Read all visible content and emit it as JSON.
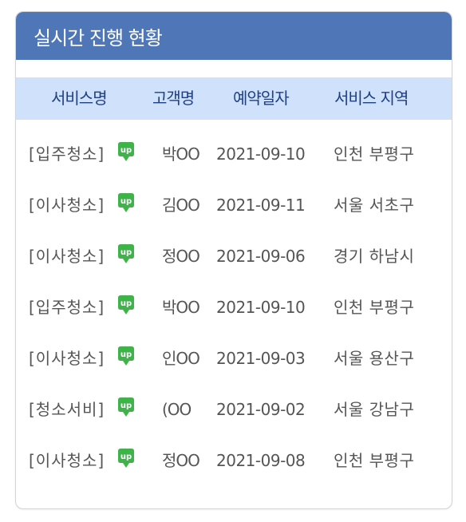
{
  "panel": {
    "title": "실시간 진행 현황"
  },
  "columns": [
    "서비스명",
    "고객명",
    "예약일자",
    "서비스 지역"
  ],
  "badge_label": "up",
  "rows": [
    {
      "service": "[입주청소]",
      "customer": "박OO",
      "date": "2021-09-10",
      "area": "인천 부평구"
    },
    {
      "service": "[이사청소]",
      "customer": "김OO",
      "date": "2021-09-11",
      "area": "서울 서초구"
    },
    {
      "service": "[이사청소]",
      "customer": "정OO",
      "date": "2021-09-06",
      "area": "경기 하남시"
    },
    {
      "service": "[입주청소]",
      "customer": "박OO",
      "date": "2021-09-10",
      "area": "인천 부평구"
    },
    {
      "service": "[이사청소]",
      "customer": "인OO",
      "date": "2021-09-03",
      "area": "서울 용산구"
    },
    {
      "service": "[청소서비]",
      "customer": "(OO",
      "date": "2021-09-02",
      "area": "서울 강남구"
    },
    {
      "service": "[이사청소]",
      "customer": "정OO",
      "date": "2021-09-08",
      "area": "인천 부평구"
    }
  ],
  "colors": {
    "header_bg": "#4f77b8",
    "column_header_bg": "#cfe1fb",
    "column_header_text": "#1f3f86",
    "badge_green": "#3fb34a"
  }
}
